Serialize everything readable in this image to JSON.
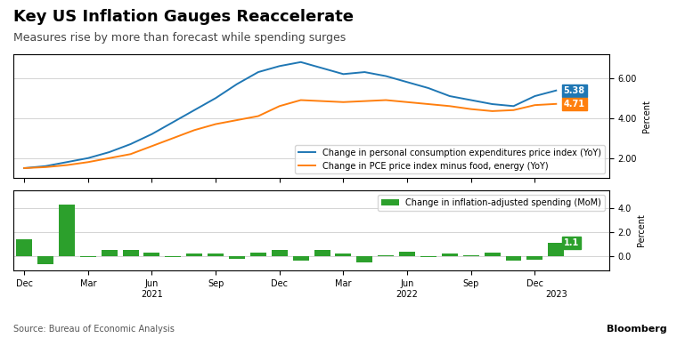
{
  "chart_data": [
    {
      "type": "line",
      "title": "Key US Inflation Gauges Reaccelerate",
      "subtitle": "Measures rise by more than forecast while spending surges",
      "categories": [
        "Dec",
        null,
        null,
        "Mar",
        null,
        null,
        "Jun",
        null,
        null,
        "Sep",
        null,
        null,
        "Dec",
        null,
        null,
        "Mar",
        null,
        null,
        "Jun",
        null,
        null,
        "Sep",
        null,
        null,
        "Dec",
        null
      ],
      "series": [
        {
          "name": "Change in personal consumption expenditures price index (YoY)",
          "values": [
            1.5,
            1.6,
            1.8,
            2.0,
            2.3,
            2.7,
            3.2,
            3.8,
            4.4,
            5.0,
            5.7,
            6.3,
            6.6,
            6.8,
            6.5,
            6.2,
            6.3,
            6.1,
            5.8,
            5.5,
            5.1,
            4.9,
            4.7,
            4.6,
            5.1,
            5.38
          ]
        },
        {
          "name": "Change in PCE price index minus food, energy (YoY)",
          "values": [
            1.5,
            1.55,
            1.65,
            1.8,
            2.0,
            2.2,
            2.6,
            3.0,
            3.4,
            3.7,
            3.9,
            4.1,
            4.6,
            4.9,
            4.85,
            4.8,
            4.85,
            4.9,
            4.8,
            4.7,
            4.6,
            4.45,
            4.35,
            4.4,
            4.65,
            4.71
          ]
        }
      ],
      "y_label": "Percent",
      "ylim": [
        1.0,
        7.2
      ],
      "yticks": [
        {
          "value": 2.0,
          "label": "2.00"
        },
        {
          "value": 4.0,
          "label": "4.00"
        },
        {
          "value": 6.0,
          "label": "6.00"
        }
      ],
      "grid": true,
      "legend": "lower right",
      "tick_labels": "y",
      "annotations": [
        {
          "text": "5.38",
          "x": 25,
          "y": 5.38
        },
        {
          "text": "4.71",
          "x": 25,
          "y": 4.71
        }
      ]
    },
    {
      "type": "bar",
      "categories": [
        "Dec",
        null,
        null,
        "Mar",
        null,
        null,
        "Jun",
        null,
        null,
        "Sep",
        null,
        null,
        "Dec",
        null,
        null,
        "Mar",
        null,
        null,
        "Jun",
        null,
        null,
        "Sep",
        null,
        null,
        "Dec",
        null
      ],
      "series": [
        {
          "name": "Change in inflation-adjusted spending (MoM)",
          "values": [
            1.4,
            -0.7,
            4.3,
            -0.1,
            0.5,
            0.5,
            0.3,
            -0.1,
            0.2,
            0.25,
            -0.25,
            0.3,
            0.5,
            -0.4,
            0.5,
            0.2,
            -0.5,
            0.1,
            0.35,
            -0.1,
            0.2,
            0.05,
            0.3,
            -0.35,
            -0.3,
            1.1
          ]
        }
      ],
      "y_label": "Percent",
      "ylim": [
        -1.2,
        5.5
      ],
      "yticks": [
        {
          "value": 0.0,
          "label": "0.0"
        },
        {
          "value": 2.0,
          "label": "2.0"
        },
        {
          "value": 4.0,
          "label": "4.0"
        }
      ],
      "grid": true,
      "legend": "upper right",
      "annotations": [
        {
          "text": "1.1",
          "x": 25,
          "y": 1.1
        }
      ],
      "x_group_labels": [
        {
          "label": "2021",
          "x": 6
        },
        {
          "label": "2022",
          "x": 18
        },
        {
          "label": "2023",
          "x": 25
        }
      ],
      "source": "Source: Bureau of Economic Analysis",
      "credit": "Bloomberg"
    }
  ]
}
